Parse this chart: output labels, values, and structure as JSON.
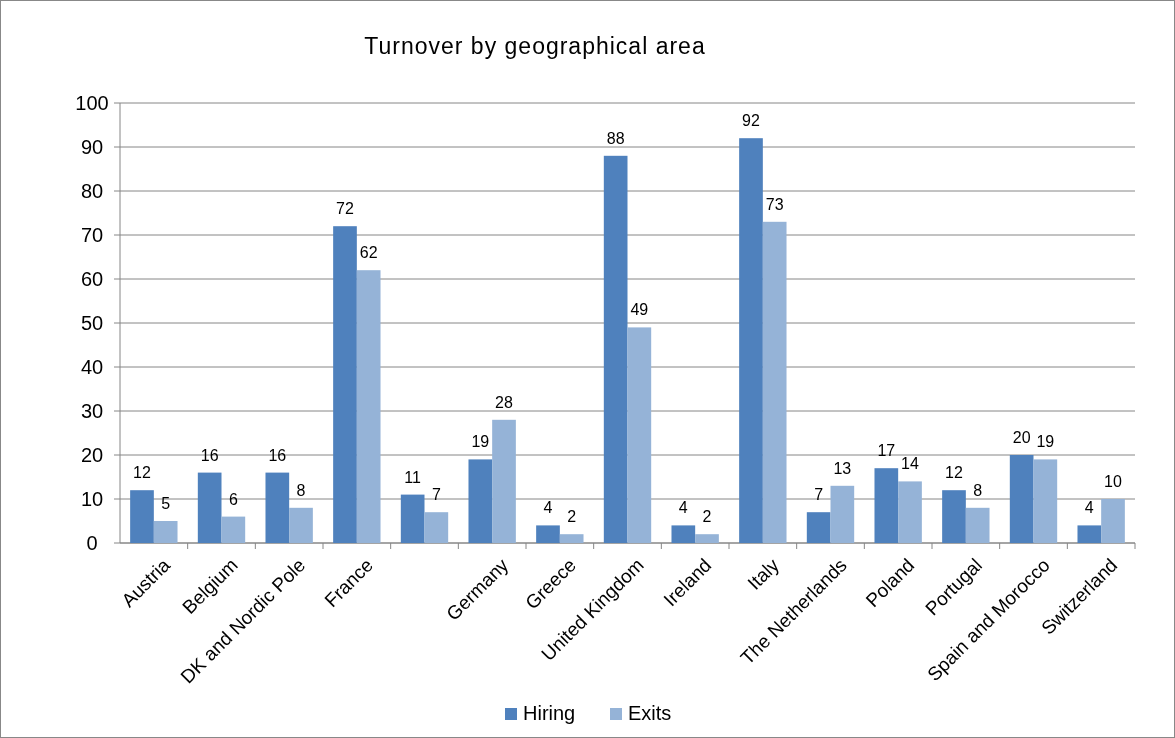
{
  "chart_data": {
    "type": "bar",
    "title": "Turnover by geographical area",
    "categories": [
      "Austria",
      "Belgium",
      "DK  and Nordic Pole",
      "France",
      null,
      "Germany",
      "Greece",
      "United Kingdom",
      "Ireland",
      "Italy",
      "The Netherlands",
      "Poland",
      "Portugal",
      "Spain and Morocco",
      "Switzerland"
    ],
    "series": [
      {
        "name": "Hiring",
        "color": "#4f81bd",
        "values": [
          12,
          16,
          16,
          72,
          11,
          19,
          4,
          88,
          4,
          92,
          7,
          17,
          12,
          20,
          4
        ]
      },
      {
        "name": "Exits",
        "color": "#95b3d7",
        "values": [
          5,
          6,
          8,
          62,
          7,
          28,
          2,
          49,
          2,
          73,
          13,
          14,
          8,
          19,
          10
        ]
      }
    ],
    "ylim": [
      0,
      100
    ],
    "yticks": [
      0,
      10,
      20,
      30,
      40,
      50,
      60,
      70,
      80,
      90,
      100
    ],
    "grid": "y",
    "legend": "bottom",
    "data_labels": true
  }
}
